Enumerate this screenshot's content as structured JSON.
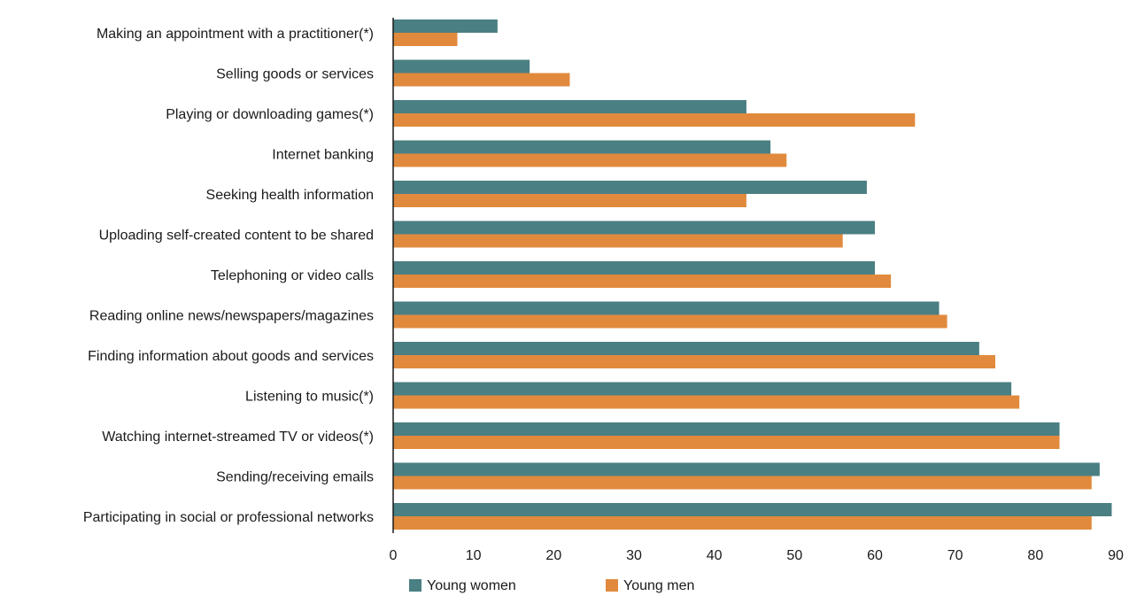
{
  "chart_data": {
    "type": "bar",
    "orientation": "horizontal",
    "categories": [
      "Making an appointment with a practitioner(*)",
      "Selling goods or services",
      "Playing or downloading games(*)",
      "Internet banking",
      "Seeking health information",
      "Uploading self-created content to be shared",
      "Telephoning or video calls",
      "Reading online news/newspapers/magazines",
      "Finding information about goods and services",
      "Listening to music(*)",
      "Watching internet-streamed TV or videos(*)",
      "Sending/receiving emails",
      "Participating in social or professional networks"
    ],
    "series": [
      {
        "name": "Young women",
        "color": "#4a7f83",
        "values": [
          13,
          17,
          44,
          47,
          59,
          60,
          60,
          68,
          73,
          77,
          83,
          88,
          89.5
        ]
      },
      {
        "name": "Young men",
        "color": "#e18a3d",
        "values": [
          8,
          22,
          65,
          49,
          44,
          56,
          62,
          69,
          75,
          78,
          83,
          87,
          87
        ]
      }
    ],
    "xlim": [
      0,
      90
    ],
    "xticks": [
      0,
      10,
      20,
      30,
      40,
      50,
      60,
      70,
      80,
      90
    ],
    "grid": false,
    "legend_position": "bottom-left"
  }
}
